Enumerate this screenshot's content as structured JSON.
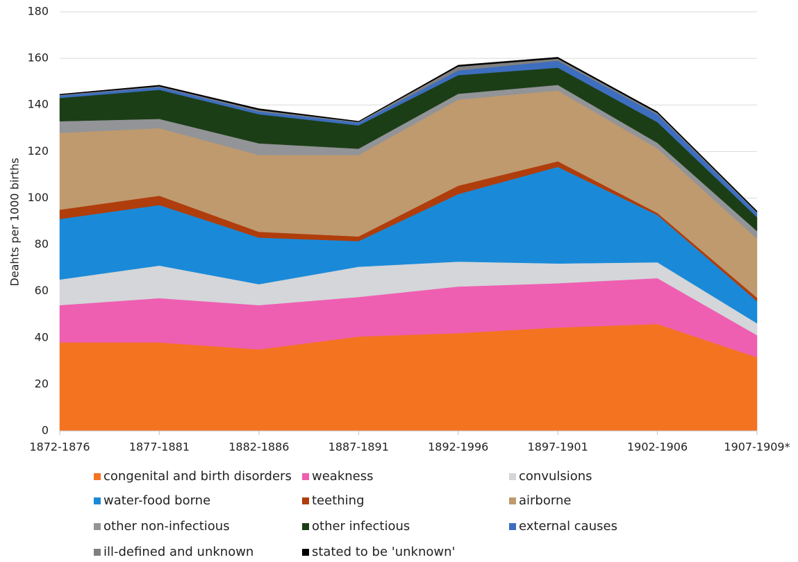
{
  "chart_data": {
    "type": "stacked-area",
    "y_label": "Deahts per 1000 births",
    "categories": [
      "1872-1876",
      "1877-1881",
      "1882-1886",
      "1887-1891",
      "1892-1996",
      "1897-1901",
      "1902-1906",
      "1907-1909*"
    ],
    "ylim": [
      0,
      180
    ],
    "yticks": [
      0,
      20,
      40,
      60,
      80,
      100,
      120,
      140,
      160,
      180
    ],
    "grid": true,
    "series": [
      {
        "name": "congenital and birth disorders",
        "color": "#f47321",
        "values": [
          38,
          38,
          35,
          40.5,
          42,
          44.4,
          45.9,
          31.6
        ]
      },
      {
        "name": "weakness",
        "color": "#ee5fb1",
        "values": [
          16,
          19,
          19,
          17,
          20,
          19,
          19.7,
          9.5
        ]
      },
      {
        "name": "convulsions",
        "color": "#d4d6d9",
        "values": [
          11,
          14,
          9,
          13,
          10.7,
          8.5,
          6.8,
          5.1
        ]
      },
      {
        "name": "water-food borne",
        "color": "#1a8ad8",
        "values": [
          26,
          26,
          20,
          11,
          29,
          41.5,
          20.3,
          9.5
        ]
      },
      {
        "name": "teething",
        "color": "#b03d0c",
        "values": [
          4,
          4,
          2.5,
          2,
          3.6,
          2.4,
          0.9,
          1.5
        ]
      },
      {
        "name": "airborne",
        "color": "#bf9a6e",
        "values": [
          33,
          29,
          33,
          35,
          37,
          30.4,
          27.7,
          25.3
        ]
      },
      {
        "name": "other non-infectious",
        "color": "#929497",
        "values": [
          5,
          4,
          5,
          2.7,
          2.5,
          2.4,
          2.4,
          3.3
        ]
      },
      {
        "name": "other infectious",
        "color": "#1c3e17",
        "values": [
          10,
          12.5,
          12.5,
          10,
          8,
          7.4,
          8.9,
          6
        ]
      },
      {
        "name": "external causes",
        "color": "#3d6ebf",
        "values": [
          1,
          1.2,
          1.2,
          1.2,
          2,
          3,
          3.3,
          1.8
        ]
      },
      {
        "name": "ill-defined and unknown",
        "color": "#7f7f7f",
        "values": [
          0.3,
          0.3,
          0.6,
          0.3,
          1.7,
          0.9,
          0.6,
          0.3
        ]
      },
      {
        "name": "stated to be 'unknown'",
        "color": "#000000",
        "values": [
          0.3,
          0.5,
          0.6,
          0.3,
          0.6,
          0.6,
          0.6,
          0.6
        ]
      }
    ]
  }
}
